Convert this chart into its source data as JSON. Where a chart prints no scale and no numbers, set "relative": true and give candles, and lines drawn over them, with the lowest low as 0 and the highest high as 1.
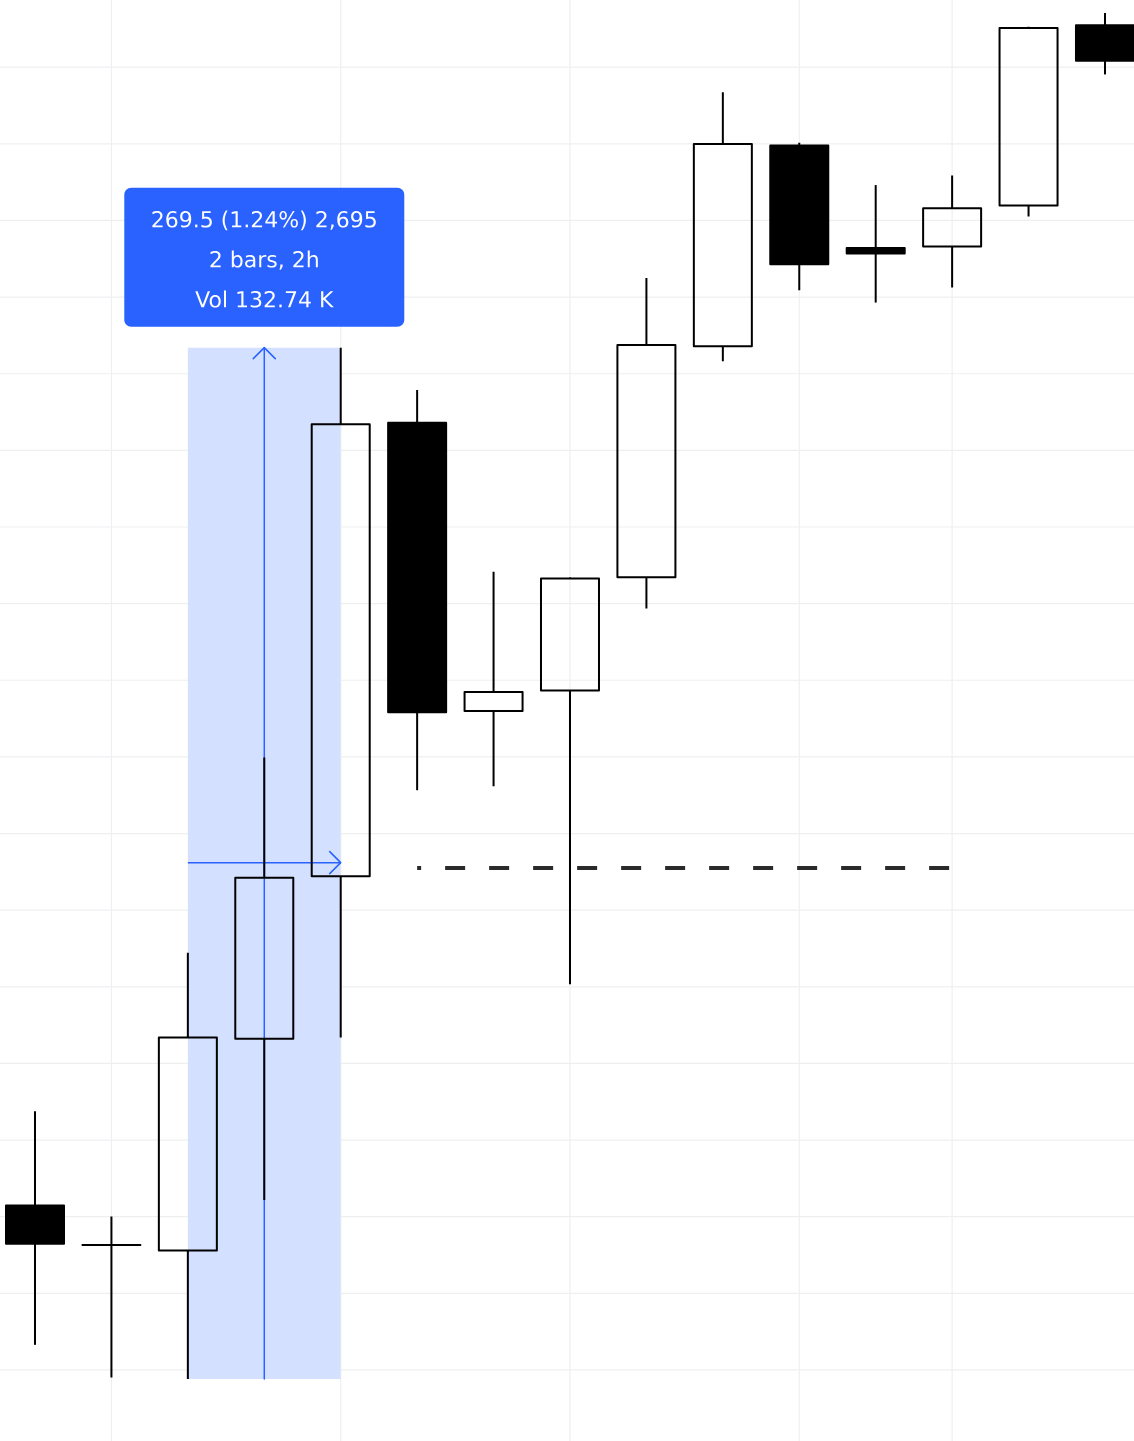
{
  "chart_data": {
    "type": "candlestick",
    "categories": [
      null,
      null,
      null,
      null,
      null,
      null,
      null,
      null,
      null,
      null,
      null,
      null,
      null,
      null,
      null
    ],
    "ohlc": [
      [
        0.127,
        0.196,
        0.025,
        0.099
      ],
      [
        0.098,
        0.119,
        0.001,
        0.098
      ],
      [
        0.094,
        0.312,
        0.0,
        0.25
      ],
      [
        0.249,
        0.455,
        0.131,
        0.367
      ],
      [
        0.368,
        0.755,
        0.25,
        0.699
      ],
      [
        0.7,
        0.724,
        0.431,
        0.488
      ],
      [
        0.489,
        0.591,
        0.434,
        0.503
      ],
      [
        0.504,
        0.587,
        0.289,
        0.586
      ],
      [
        0.587,
        0.806,
        0.564,
        0.757
      ],
      [
        0.756,
        0.942,
        0.745,
        0.904
      ],
      [
        0.903,
        0.905,
        0.797,
        0.816
      ],
      [
        0.828,
        0.874,
        0.788,
        0.824
      ],
      [
        0.829,
        0.881,
        0.799,
        0.857
      ],
      [
        0.859,
        0.99,
        0.851,
        0.989
      ],
      [
        0.991,
        1.0,
        0.955,
        0.965
      ]
    ],
    "relative": true,
    "color": "#000000",
    "grid": true,
    "bands": [
      {
        "axis": "y",
        "from": 0.0,
        "to": 0.755,
        "color": "#d4e0ff"
      }
    ],
    "ref_lines": [
      {
        "axis": "y",
        "value": 0.374,
        "color": "#2a2a2a",
        "line_style": "dashed"
      },
      {
        "axis": "y",
        "value": 0.378,
        "color": "#2962ff",
        "line_style": "solid"
      }
    ],
    "annotations": [
      "269.5 (1.24%) 2,695",
      "2 bars, 2h",
      "Vol 132.74 K"
    ]
  }
}
